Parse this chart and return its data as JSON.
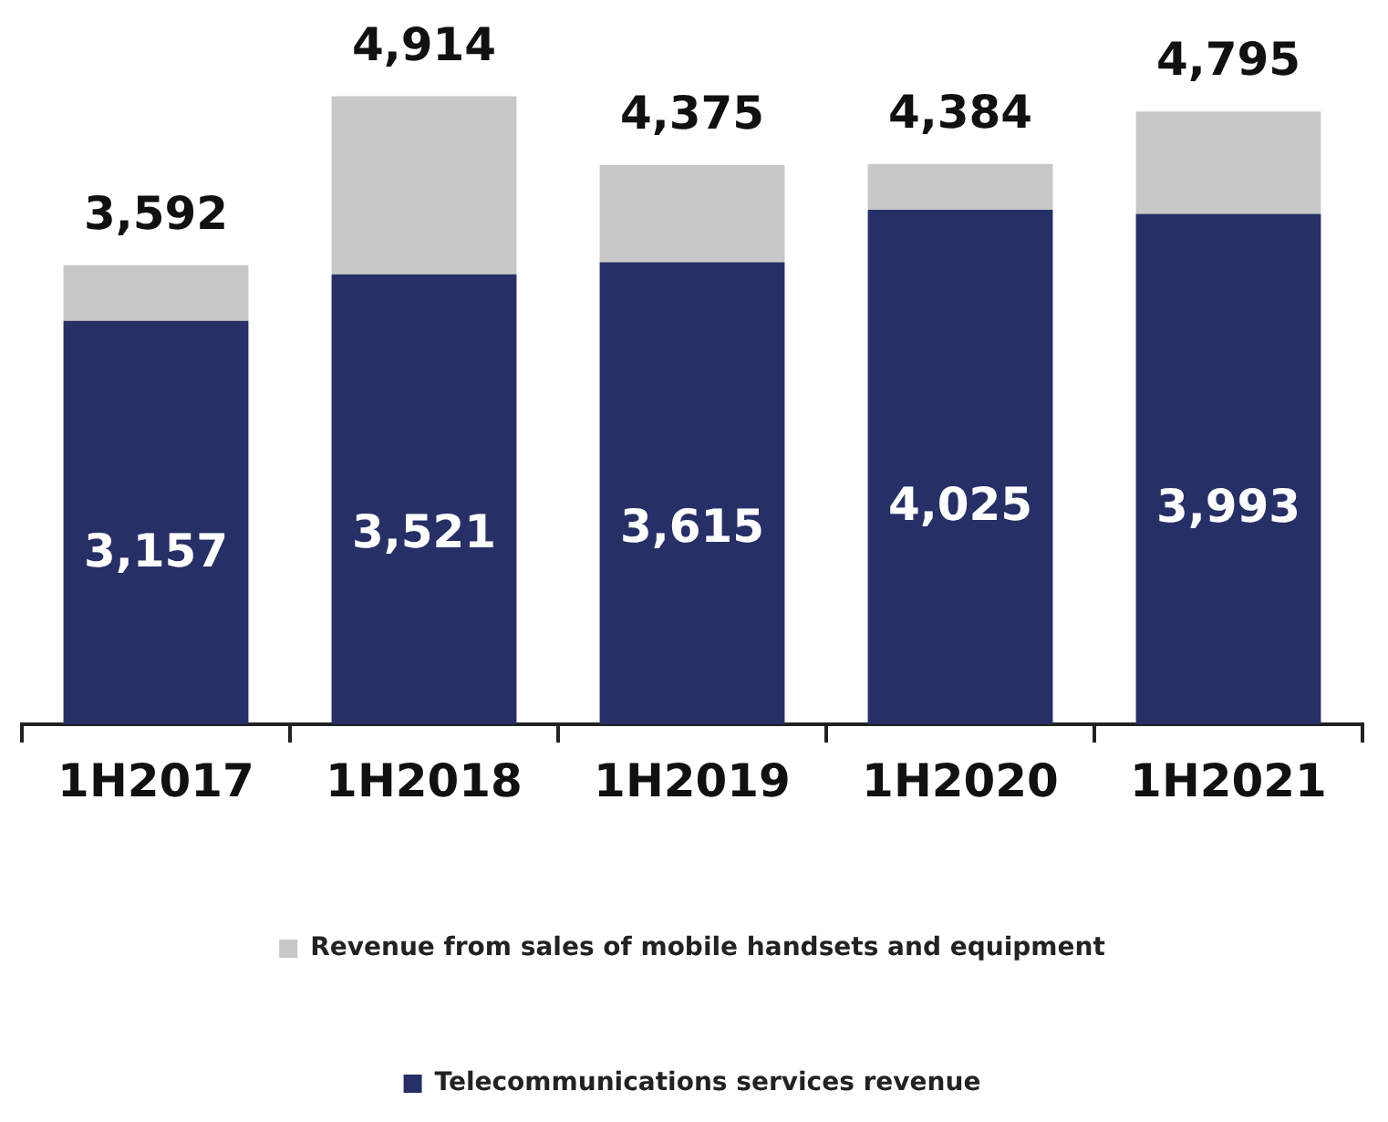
{
  "chart_data": {
    "type": "bar",
    "stacked": true,
    "categories": [
      "1H2017",
      "1H2018",
      "1H2019",
      "1H2020",
      "1H2021"
    ],
    "series": [
      {
        "name": "Telecommunications services revenue",
        "color": "#263066",
        "values": [
          3157,
          3521,
          3615,
          4025,
          3993
        ],
        "value_labels": [
          "3,157",
          "3,521",
          "3,615",
          "4,025",
          "3,993"
        ]
      },
      {
        "name": "Revenue from sales of mobile handsets and equipment",
        "color": "#c8c8c8",
        "values": [
          435,
          1393,
          760,
          359,
          802
        ]
      }
    ],
    "totals": [
      "3,592",
      "4,914",
      "4,375",
      "4,384",
      "4,795"
    ],
    "legend": "bottom",
    "grid": false
  }
}
